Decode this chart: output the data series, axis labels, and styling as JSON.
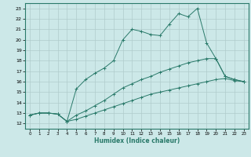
{
  "xlabel": "Humidex (Indice chaleur)",
  "background_color": "#cce8e8",
  "grid_color": "#b0cccc",
  "line_color": "#2a7a6a",
  "xlim": [
    -0.5,
    23.5
  ],
  "ylim": [
    11.5,
    23.5
  ],
  "xticks": [
    0,
    1,
    2,
    3,
    4,
    5,
    6,
    7,
    8,
    9,
    10,
    11,
    12,
    13,
    14,
    15,
    16,
    17,
    18,
    19,
    20,
    21,
    22,
    23
  ],
  "yticks": [
    12,
    13,
    14,
    15,
    16,
    17,
    18,
    19,
    20,
    21,
    22,
    23
  ],
  "line1_x": [
    0,
    1,
    2,
    3,
    4,
    5,
    6,
    7,
    8,
    9,
    10,
    11,
    12,
    13,
    14,
    15,
    16,
    17,
    18,
    19,
    20,
    21,
    22,
    23
  ],
  "line1_y": [
    12.8,
    13.0,
    13.0,
    12.9,
    12.2,
    15.3,
    16.2,
    16.8,
    17.3,
    18.0,
    20.0,
    21.0,
    20.8,
    20.5,
    20.4,
    21.5,
    22.5,
    22.2,
    23.0,
    19.7,
    18.2,
    16.5,
    16.2,
    16.0
  ],
  "line2_x": [
    0,
    1,
    2,
    3,
    4,
    5,
    6,
    7,
    8,
    9,
    10,
    11,
    12,
    13,
    14,
    15,
    16,
    17,
    18,
    19,
    20,
    21,
    22,
    23
  ],
  "line2_y": [
    12.8,
    13.0,
    13.0,
    12.9,
    12.2,
    12.8,
    13.2,
    13.7,
    14.2,
    14.8,
    15.4,
    15.8,
    16.2,
    16.5,
    16.9,
    17.2,
    17.5,
    17.8,
    18.0,
    18.2,
    18.2,
    16.5,
    16.2,
    16.0
  ],
  "line3_x": [
    0,
    1,
    2,
    3,
    4,
    5,
    6,
    7,
    8,
    9,
    10,
    11,
    12,
    13,
    14,
    15,
    16,
    17,
    18,
    19,
    20,
    21,
    22,
    23
  ],
  "line3_y": [
    12.8,
    13.0,
    13.0,
    12.9,
    12.2,
    12.4,
    12.7,
    13.0,
    13.3,
    13.6,
    13.9,
    14.2,
    14.5,
    14.8,
    15.0,
    15.2,
    15.4,
    15.6,
    15.8,
    16.0,
    16.2,
    16.3,
    16.1,
    16.0
  ]
}
